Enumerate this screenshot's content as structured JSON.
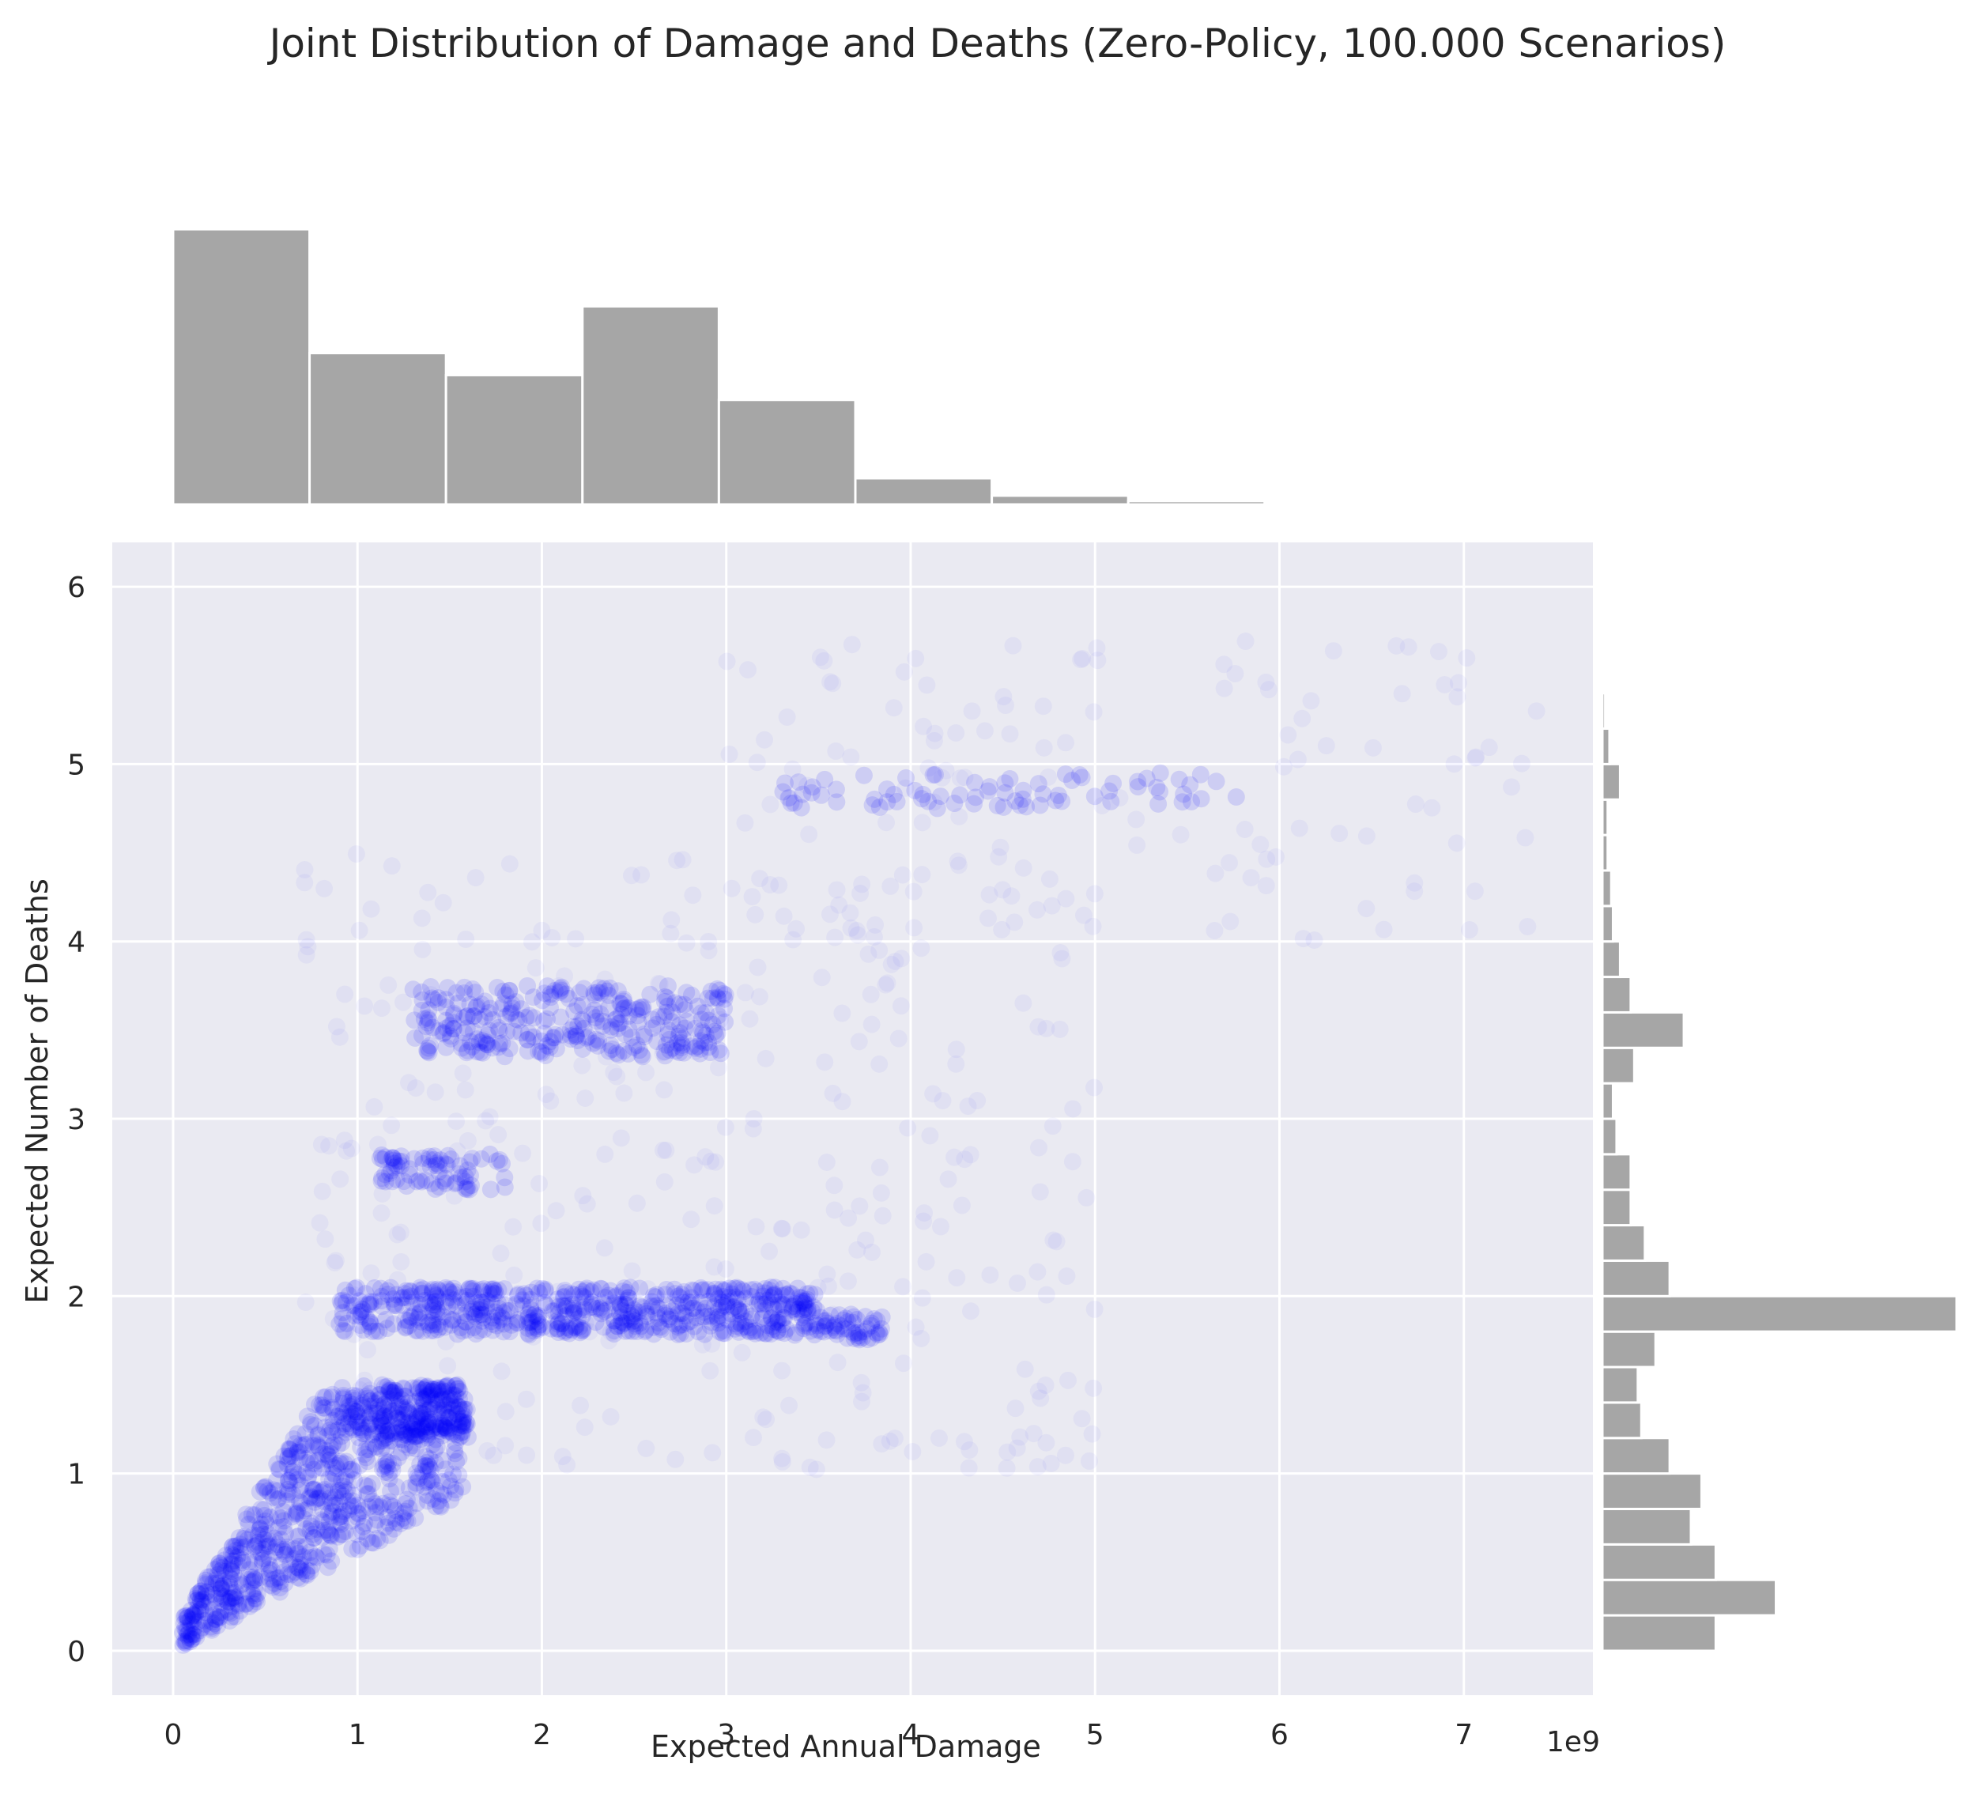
{
  "chart_data": {
    "type": "scatter",
    "title": "Joint Distribution of Damage and Deaths (Zero-Policy, 100.000 Scenarios)",
    "xlabel": "Expected Annual Damage",
    "ylabel": "Expected Number of Deaths",
    "x_offset_label": "1e9",
    "x_scale": 1000000000,
    "xlim": [
      -0.33,
      7.7
    ],
    "ylim": [
      -0.25,
      6.25
    ],
    "xticks": [
      "0",
      "1",
      "2",
      "3",
      "4",
      "5",
      "6",
      "7"
    ],
    "yticks": [
      "0",
      "1",
      "2",
      "3",
      "4",
      "5",
      "6"
    ],
    "xtick_values": [
      0,
      1,
      2,
      3,
      4,
      5,
      6,
      7
    ],
    "ytick_values": [
      0,
      1,
      2,
      3,
      4,
      5,
      6
    ],
    "grid": true,
    "point_color": "#0000ff",
    "point_alpha": 0.03,
    "hist_color": "#a6a6a6",
    "background_color": "#eaeaf2",
    "clusters": [
      {
        "x_range": [
          0.05,
          1.6
        ],
        "y_range": [
          0.05,
          1.5
        ],
        "kind": "wedge",
        "weight": 0.38
      },
      {
        "x_range": [
          1.4,
          3.5
        ],
        "y_range": [
          1.78,
          2.05
        ],
        "kind": "band",
        "weight": 0.2
      },
      {
        "x_range": [
          1.3,
          3.0
        ],
        "y_range": [
          3.35,
          3.75
        ],
        "kind": "band",
        "weight": 0.12
      },
      {
        "x_range": [
          0.9,
          1.45
        ],
        "y_range": [
          1.8,
          2.05
        ],
        "kind": "band",
        "weight": 0.04
      },
      {
        "x_range": [
          1.1,
          1.8
        ],
        "y_range": [
          2.6,
          2.8
        ],
        "kind": "band",
        "weight": 0.03
      },
      {
        "x_range": [
          3.3,
          5.8
        ],
        "y_range": [
          4.75,
          4.95
        ],
        "kind": "band",
        "weight": 0.03
      },
      {
        "x_range": [
          3.5,
          3.85
        ],
        "y_range": [
          1.75,
          1.9
        ],
        "kind": "band",
        "weight": 0.02
      },
      {
        "x_range": [
          0.7,
          5.0
        ],
        "y_range": [
          1.0,
          4.5
        ],
        "kind": "diffuse",
        "weight": 0.13
      },
      {
        "x_range": [
          3.0,
          7.4
        ],
        "y_range": [
          4.0,
          5.7
        ],
        "kind": "diffuse",
        "weight": 0.05
      }
    ],
    "x_hist": {
      "bin_edges": [
        0.0,
        0.74,
        1.48,
        2.22,
        2.96,
        3.7,
        4.44,
        5.18,
        5.92,
        6.66
      ],
      "counts": [
        1,
        0.55,
        0.47,
        0.72,
        0.38,
        0.095,
        0.032,
        0.012,
        0.004
      ]
    },
    "y_hist": {
      "bin_edges": [
        0.0,
        0.2,
        0.4,
        0.6,
        0.8,
        1.0,
        1.2,
        1.4,
        1.6,
        1.8,
        2.0,
        2.2,
        2.4,
        2.6,
        2.8,
        3.0,
        3.2,
        3.4,
        3.6,
        3.8,
        4.0,
        4.2,
        4.4,
        4.6,
        4.8,
        5.0,
        5.2,
        5.4,
        5.6
      ],
      "counts": [
        0.32,
        0.49,
        0.32,
        0.25,
        0.28,
        0.19,
        0.11,
        0.1,
        0.15,
        1.0,
        0.19,
        0.12,
        0.08,
        0.08,
        0.04,
        0.03,
        0.09,
        0.23,
        0.08,
        0.05,
        0.03,
        0.025,
        0.015,
        0.015,
        0.05,
        0.02,
        0.008,
        0.004
      ]
    }
  }
}
